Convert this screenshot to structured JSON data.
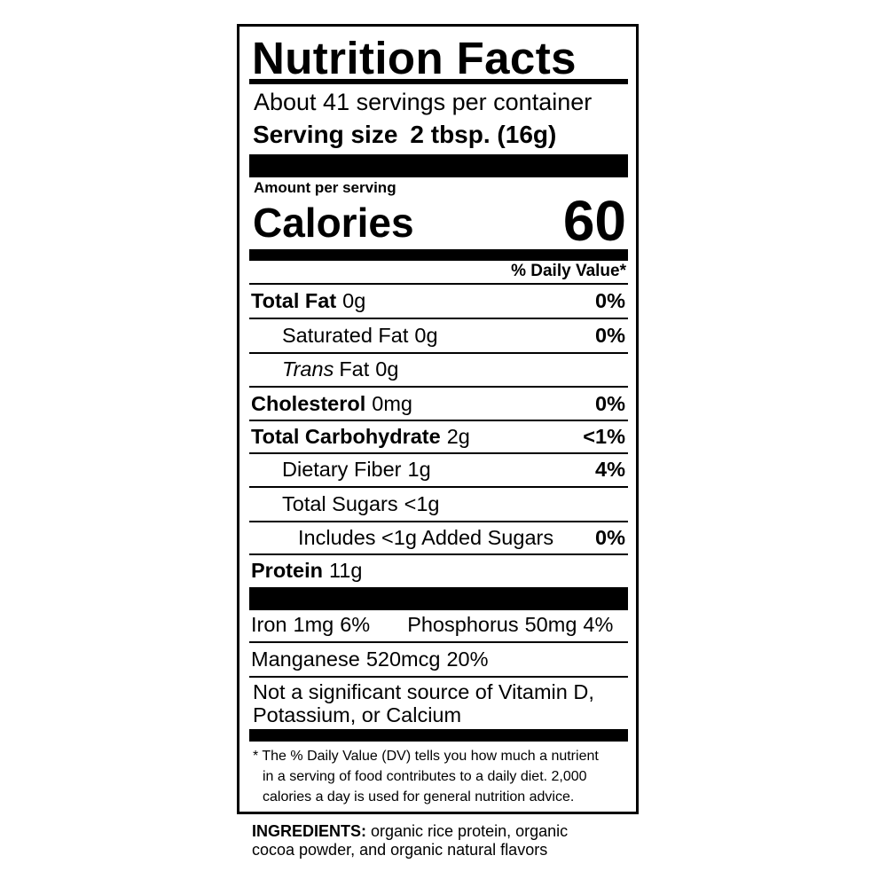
{
  "label": {
    "title": "Nutrition Facts",
    "servings": "About 41 servings per container",
    "serving_size": {
      "label": "Serving size",
      "value": "2 tbsp. (16g)"
    },
    "amount_per_serving": "Amount per serving",
    "calories": {
      "label": "Calories",
      "value": "60"
    },
    "daily_value_header": "% Daily Value*",
    "nutrients": [
      {
        "name": "Total Fat",
        "amount": "0g",
        "daily_value": "0%"
      },
      {
        "name": "Saturated Fat",
        "amount": "0g",
        "daily_value": "0%"
      },
      {
        "name_italic": "Trans",
        "name": "Fat",
        "amount": "0g"
      },
      {
        "name": "Cholesterol",
        "amount": "0mg",
        "daily_value": "0%"
      },
      {
        "name": "Total Carbohydrate",
        "amount": "2g",
        "daily_value": "<1%"
      },
      {
        "name": "Dietary Fiber",
        "amount": "1g",
        "daily_value": "4%"
      },
      {
        "name": "Total Sugars",
        "amount": "<1g"
      },
      {
        "name": "Includes <1g Added Sugars",
        "daily_value": "0%"
      },
      {
        "name": "Protein",
        "amount": "11g"
      }
    ],
    "minerals": [
      [
        {
          "name": "Iron",
          "amount": "1mg",
          "daily_value": "6%"
        },
        {
          "name": "Phosphorus",
          "amount": "50mg",
          "daily_value": "4%"
        }
      ],
      [
        {
          "name": "Manganese",
          "amount": "520mcg",
          "daily_value": "20%"
        }
      ]
    ],
    "note": [
      "Not a significant source of Vitamin D,",
      "Potassium, or Calcium"
    ],
    "footnote": [
      "* The % Daily Value (DV) tells you how much a nutrient",
      "in a serving of food contributes to a daily diet. 2,000",
      "calories a day is used for general nutrition advice."
    ]
  },
  "ingredients": {
    "label": "INGREDIENTS:",
    "lines": [
      "organic rice protein, organic",
      "cocoa powder, and organic natural flavors"
    ]
  }
}
